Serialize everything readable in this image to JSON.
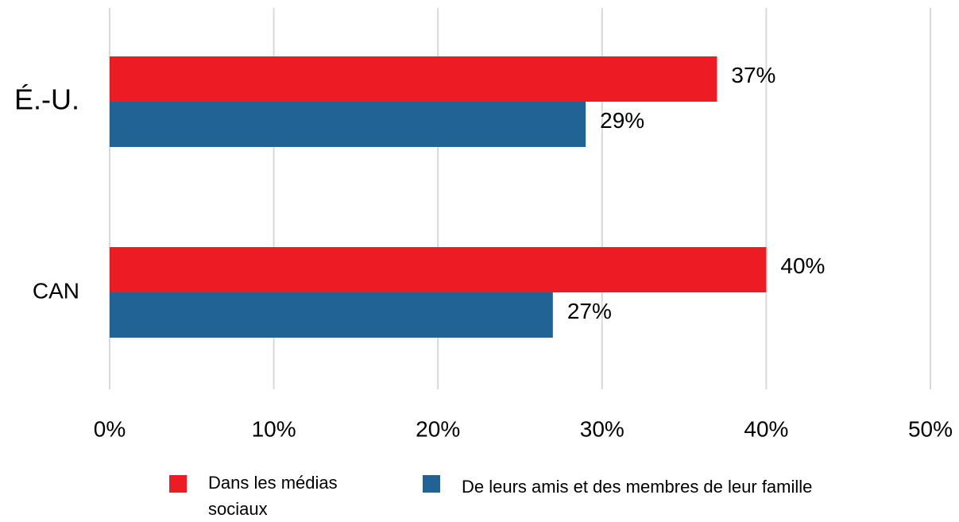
{
  "chart_data": {
    "type": "bar",
    "orientation": "horizontal",
    "categories": [
      "É.-U.",
      "CAN"
    ],
    "series": [
      {
        "name": "Dans les médias sociaux",
        "color": "#ed1c24",
        "values": [
          37,
          40
        ],
        "value_labels": [
          "37%",
          "40%"
        ]
      },
      {
        "name": "De leurs amis et des membres de leur famille",
        "color": "#206394",
        "values": [
          29,
          27
        ],
        "value_labels": [
          "29%",
          "27%"
        ]
      }
    ],
    "xlim": [
      0,
      50
    ],
    "xticks": [
      {
        "value": 0,
        "label": "0%"
      },
      {
        "value": 10,
        "label": "10%"
      },
      {
        "value": 20,
        "label": "20%"
      },
      {
        "value": 30,
        "label": "30%"
      },
      {
        "value": 40,
        "label": "40%"
      },
      {
        "value": 50,
        "label": "50%"
      }
    ],
    "grid": true,
    "legend": "bottom"
  }
}
